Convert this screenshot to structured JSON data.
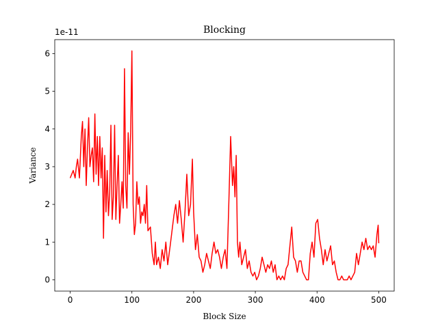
{
  "chart_data": {
    "type": "line",
    "title": "Blocking",
    "x_label": "Block Size",
    "y_label": "Variance",
    "offset_label": "1e-11",
    "x": [
      0,
      5,
      8,
      10,
      12,
      15,
      18,
      20,
      22,
      24,
      26,
      28,
      30,
      32,
      34,
      36,
      38,
      40,
      42,
      44,
      46,
      48,
      50,
      52,
      54,
      56,
      58,
      60,
      62,
      64,
      66,
      68,
      70,
      72,
      74,
      76,
      78,
      80,
      82,
      84,
      86,
      88,
      90,
      92,
      94,
      96,
      98,
      100,
      102,
      104,
      106,
      108,
      110,
      112,
      114,
      116,
      118,
      120,
      122,
      124,
      126,
      130,
      133,
      136,
      138,
      140,
      143,
      146,
      149,
      152,
      155,
      158,
      162,
      165,
      168,
      171,
      174,
      177,
      180,
      183,
      186,
      189,
      192,
      195,
      198,
      200,
      203,
      206,
      209,
      212,
      215,
      218,
      221,
      224,
      227,
      230,
      233,
      236,
      239,
      242,
      245,
      248,
      251,
      254,
      257,
      260,
      263,
      265,
      267,
      269,
      271,
      273,
      275,
      278,
      281,
      284,
      287,
      290,
      293,
      296,
      299,
      302,
      305,
      308,
      311,
      314,
      317,
      320,
      323,
      326,
      329,
      332,
      335,
      338,
      341,
      344,
      347,
      350,
      353,
      356,
      359,
      362,
      365,
      368,
      371,
      374,
      377,
      380,
      383,
      386,
      389,
      392,
      395,
      398,
      401,
      404,
      407,
      410,
      413,
      416,
      419,
      422,
      425,
      428,
      431,
      434,
      437,
      440,
      443,
      446,
      449,
      452,
      455,
      458,
      461,
      464,
      467,
      470,
      473,
      476,
      479,
      482,
      485,
      488,
      491,
      494,
      497,
      499,
      500
    ],
    "series": [
      {
        "name": "Variance",
        "color": "#ff0000",
        "values": [
          2.7,
          2.9,
          2.7,
          3.0,
          3.2,
          2.7,
          3.8,
          4.2,
          3.0,
          4.0,
          2.5,
          3.5,
          4.3,
          3.0,
          3.3,
          3.5,
          2.6,
          4.4,
          2.8,
          3.8,
          2.5,
          3.8,
          2.7,
          3.5,
          1.1,
          3.3,
          1.8,
          2.9,
          1.7,
          2.3,
          4.1,
          1.6,
          2.2,
          4.1,
          1.6,
          2.5,
          3.3,
          1.5,
          2.0,
          2.6,
          1.9,
          5.6,
          2.5,
          1.9,
          3.9,
          2.8,
          3.9,
          6.07,
          2.0,
          1.2,
          1.5,
          2.6,
          2.0,
          2.2,
          1.5,
          1.8,
          1.7,
          2.0,
          1.5,
          2.5,
          1.3,
          1.4,
          0.7,
          0.4,
          1.0,
          0.4,
          0.6,
          0.3,
          0.8,
          0.5,
          1.0,
          0.4,
          0.9,
          1.3,
          1.7,
          2.0,
          1.5,
          2.1,
          1.6,
          1.0,
          1.8,
          2.8,
          1.7,
          2.0,
          3.2,
          1.8,
          0.8,
          1.2,
          0.6,
          0.5,
          0.2,
          0.4,
          0.7,
          0.5,
          0.3,
          0.7,
          1.0,
          0.7,
          0.8,
          0.6,
          0.3,
          0.6,
          0.8,
          0.3,
          2.0,
          3.8,
          2.5,
          3.0,
          2.2,
          3.3,
          1.0,
          0.6,
          1.0,
          0.4,
          0.6,
          0.8,
          0.3,
          0.5,
          0.2,
          0.1,
          0.2,
          0.0,
          0.1,
          0.3,
          0.6,
          0.4,
          0.2,
          0.4,
          0.3,
          0.5,
          0.2,
          0.4,
          0.0,
          0.1,
          0.0,
          0.1,
          0.0,
          0.3,
          0.4,
          0.9,
          1.4,
          0.6,
          0.5,
          0.2,
          0.5,
          0.5,
          0.2,
          0.1,
          0.0,
          0.0,
          0.7,
          1.0,
          0.6,
          1.5,
          1.6,
          1.1,
          0.8,
          0.4,
          0.8,
          0.5,
          0.7,
          0.9,
          0.4,
          0.5,
          0.2,
          0.0,
          0.0,
          0.1,
          0.0,
          0.0,
          0.0,
          0.1,
          0.0,
          0.1,
          0.2,
          0.7,
          0.4,
          0.7,
          1.0,
          0.8,
          1.1,
          0.8,
          0.9,
          0.8,
          0.9,
          0.6,
          1.2,
          1.45,
          0.97
        ]
      }
    ],
    "xlim": [
      -25,
      525
    ],
    "ylim": [
      -0.3,
      6.37
    ],
    "xticks": [
      0,
      100,
      200,
      300,
      400,
      500
    ],
    "yticks": [
      0,
      1,
      2,
      3,
      4,
      5,
      6
    ]
  }
}
